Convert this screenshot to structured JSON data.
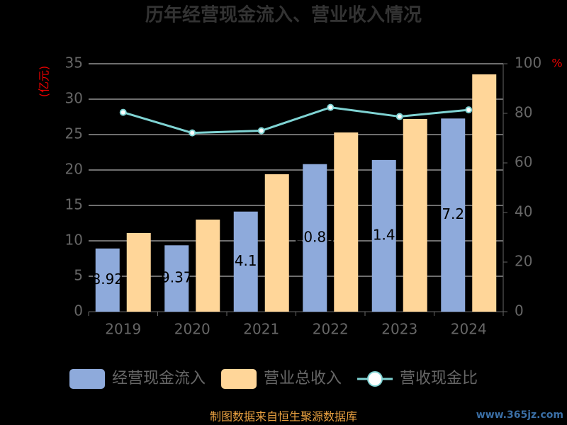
{
  "chart_data": {
    "type": "bar",
    "title": "历年经营现金流入、营业收入情况",
    "y_label": "(亿元)",
    "y2_label": "%",
    "categories": [
      "2019",
      "2020",
      "2021",
      "2022",
      "2023",
      "2024"
    ],
    "series": [
      {
        "name": "经营现金流入",
        "type": "bar",
        "color": "#8eaadb",
        "values": [
          8.92,
          9.37,
          14.13,
          20.83,
          21.41,
          27.27
        ],
        "show_labels": true
      },
      {
        "name": "营业总收入",
        "type": "bar",
        "color": "#ffd699",
        "values": [
          11.1,
          13.0,
          19.4,
          25.3,
          27.2,
          33.5
        ]
      },
      {
        "name": "营收现金比",
        "type": "line",
        "axis": "y2",
        "color": "#7fd3d3",
        "values": [
          80.4,
          72.1,
          73.0,
          82.4,
          78.7,
          81.4
        ]
      }
    ],
    "ylim": [
      0,
      35
    ],
    "yticks": [
      0,
      5,
      10,
      15,
      20,
      25,
      30,
      35
    ],
    "y2lim": [
      0,
      100
    ],
    "y2ticks": [
      0,
      20,
      40,
      60,
      80,
      100
    ],
    "grid": true,
    "legend": "bottom",
    "source": "制图数据来自恒生聚源数据库",
    "watermark": "www.365jz.com"
  }
}
